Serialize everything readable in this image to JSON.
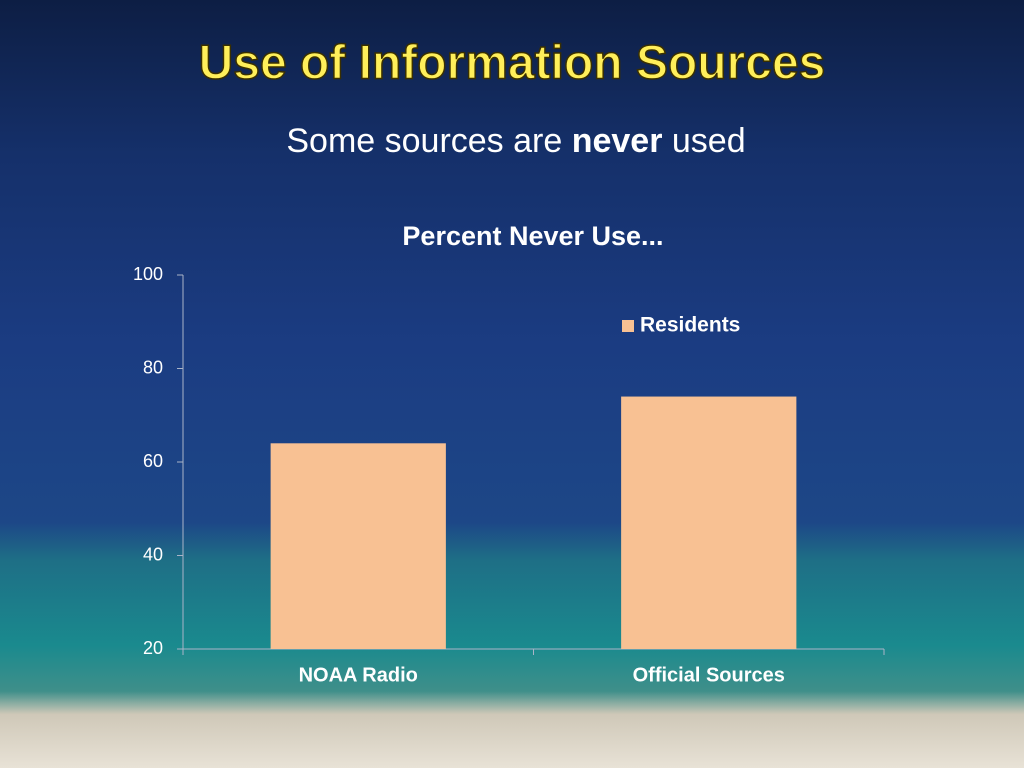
{
  "slide": {
    "title": "Use of Information Sources",
    "subtitle": [
      "Some sources are ",
      "never",
      " used"
    ]
  },
  "chart_data": {
    "type": "bar",
    "title": "Percent Never Use...",
    "categories": [
      "NOAA Radio",
      "Official Sources"
    ],
    "series": [
      {
        "name": "Residents",
        "color": "#f8c193",
        "values": [
          64,
          74
        ]
      }
    ],
    "ylim": [
      20,
      100
    ],
    "yticks": [
      20,
      40,
      60,
      80,
      100
    ],
    "legend": "upper right"
  }
}
